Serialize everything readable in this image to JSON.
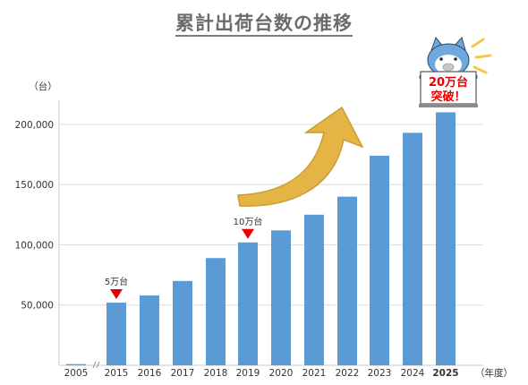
{
  "chart_data": {
    "type": "bar",
    "title": "累計出荷台数の推移",
    "ylabel": "（台）",
    "xlabel": "（年度）",
    "categories": [
      "2005",
      "2015",
      "2016",
      "2017",
      "2018",
      "2019",
      "2020",
      "2021",
      "2022",
      "2023",
      "2024",
      "2025"
    ],
    "values": [
      1000,
      52000,
      58000,
      70000,
      89000,
      102000,
      112000,
      125000,
      140000,
      174000,
      193000,
      210000
    ],
    "ylim": [
      0,
      220000
    ],
    "yticks": [
      50000,
      100000,
      150000,
      200000
    ],
    "ytick_labels": [
      "50,000",
      "100,000",
      "150,000",
      "200,000"
    ],
    "axis_break_after": "2005",
    "bold_category": "2025",
    "grid": true,
    "bar_color": "#5b9bd5",
    "annotations": [
      {
        "category": "2015",
        "text": "5万台"
      },
      {
        "category": "2019",
        "text": "10万台"
      }
    ],
    "mascot_sign": {
      "line1": "20万台",
      "line2": "突破！"
    },
    "marker_color": "#e60000",
    "arrow_color": "#e3b23c"
  }
}
